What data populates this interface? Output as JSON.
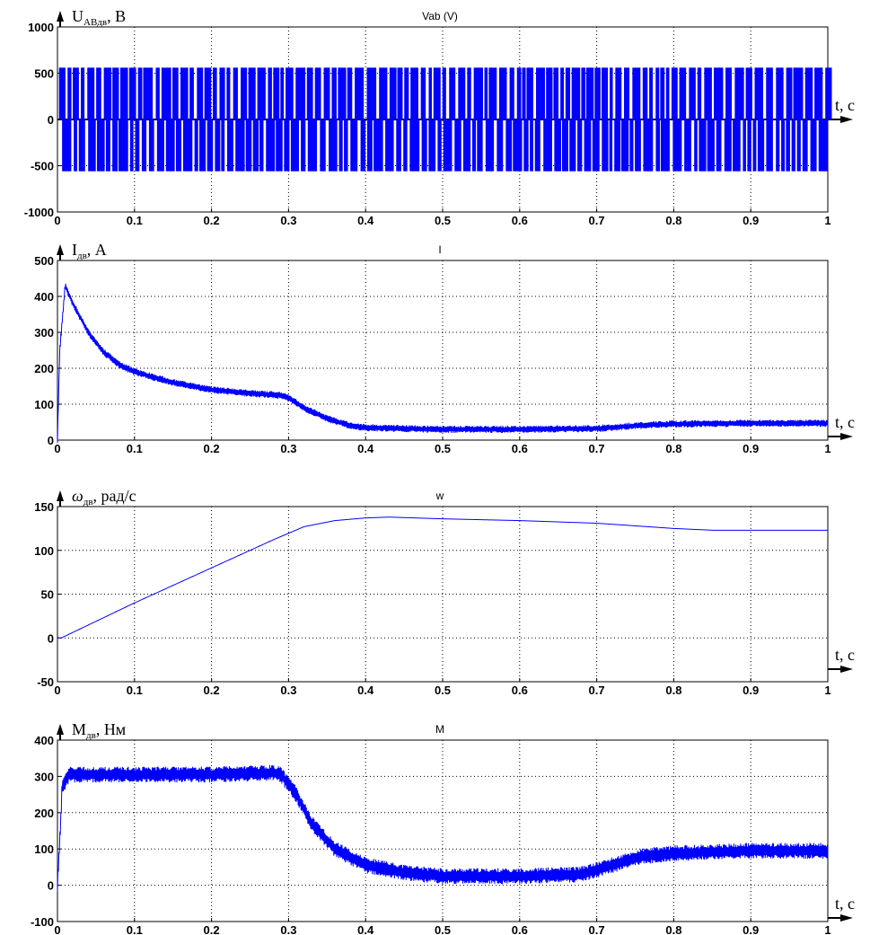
{
  "colors": {
    "signal": "#0000ff",
    "axes": "#000000",
    "grid": "#000000",
    "background": "#ffffff"
  },
  "chart_data": [
    {
      "type": "line",
      "title": "Vab (V)",
      "ylabel_main": "U",
      "ylabel_sub": "ABдв",
      "ylabel_unit": ", В",
      "xlabel": "t, c",
      "xlim": [
        0,
        1
      ],
      "ylim": [
        -1000,
        1000
      ],
      "xticks": [
        "0",
        "0.1",
        "0.2",
        "0.3",
        "0.4",
        "0.5",
        "0.6",
        "0.7",
        "0.8",
        "0.9",
        "1"
      ],
      "yticks": [
        "1000",
        "500",
        "0",
        "-500",
        "-1000"
      ],
      "grid": true,
      "signal": "PWM line voltage switching between +560 and -560 V",
      "levels": [
        560,
        -560
      ],
      "series": [
        {
          "x": [
            0,
            0.1,
            0.2,
            0.3,
            0.4,
            0.5,
            0.6,
            0.7,
            0.8,
            0.9,
            1.0
          ],
          "y_high": [
            560,
            560,
            560,
            560,
            560,
            560,
            560,
            560,
            560,
            560,
            560
          ],
          "y_low": [
            -560,
            -560,
            -560,
            -560,
            -560,
            -560,
            -560,
            -560,
            -560,
            -560,
            -560
          ]
        }
      ]
    },
    {
      "type": "line",
      "title": "I",
      "ylabel_main": "I",
      "ylabel_sub": "дв",
      "ylabel_unit": ", А",
      "xlabel": "t, c",
      "xlim": [
        0,
        1
      ],
      "ylim": [
        0,
        500
      ],
      "xticks": [
        "0",
        "0.1",
        "0.2",
        "0.3",
        "0.4",
        "0.5",
        "0.6",
        "0.7",
        "0.8",
        "0.9",
        "1"
      ],
      "yticks": [
        "500",
        "400",
        "300",
        "200",
        "100",
        "0"
      ],
      "grid": true,
      "ripple": 10,
      "series": [
        {
          "x": [
            0,
            0.003,
            0.01,
            0.02,
            0.04,
            0.06,
            0.08,
            0.1,
            0.15,
            0.2,
            0.25,
            0.29,
            0.3,
            0.32,
            0.35,
            0.38,
            0.4,
            0.45,
            0.5,
            0.6,
            0.7,
            0.75,
            0.8,
            0.9,
            1.0
          ],
          "y": [
            0,
            250,
            430,
            380,
            300,
            245,
            210,
            190,
            160,
            140,
            130,
            125,
            118,
            90,
            60,
            40,
            35,
            32,
            30,
            30,
            32,
            40,
            45,
            47,
            47
          ]
        }
      ]
    },
    {
      "type": "line",
      "title": "w",
      "ylabel_main": "ω",
      "ylabel_sub": "дв",
      "ylabel_unit": ", рад/с",
      "xlabel": "t, c",
      "xlim": [
        0,
        1
      ],
      "ylim": [
        -50,
        150
      ],
      "xticks": [
        "0",
        "0.1",
        "0.2",
        "0.3",
        "0.4",
        "0.5",
        "0.6",
        "0.7",
        "0.8",
        "0.9",
        "1"
      ],
      "yticks": [
        "150",
        "100",
        "50",
        "0",
        "-50"
      ],
      "grid": true,
      "ripple": 0,
      "series": [
        {
          "x": [
            0,
            0.005,
            0.1,
            0.2,
            0.28,
            0.32,
            0.36,
            0.4,
            0.43,
            0.5,
            0.6,
            0.7,
            0.75,
            0.8,
            0.85,
            1.0
          ],
          "y": [
            0,
            0,
            40,
            80,
            112,
            127,
            134,
            137,
            138,
            136,
            134,
            131,
            128,
            125,
            123,
            123
          ]
        }
      ]
    },
    {
      "type": "line",
      "title": "M",
      "ylabel_main": "M",
      "ylabel_sub": "дв",
      "ylabel_unit": ", Нм",
      "xlabel": "t, c",
      "xlim": [
        0,
        1
      ],
      "ylim": [
        -100,
        400
      ],
      "xticks": [
        "0",
        "0.1",
        "0.2",
        "0.3",
        "0.4",
        "0.5",
        "0.6",
        "0.7",
        "0.8",
        "0.9",
        "1"
      ],
      "yticks": [
        "400",
        "300",
        "200",
        "100",
        "0",
        "-100"
      ],
      "grid": true,
      "ripple": 22,
      "series": [
        {
          "x": [
            0,
            0.003,
            0.006,
            0.015,
            0.05,
            0.1,
            0.2,
            0.28,
            0.29,
            0.31,
            0.33,
            0.36,
            0.4,
            0.45,
            0.5,
            0.6,
            0.68,
            0.72,
            0.76,
            0.8,
            0.9,
            1.0
          ],
          "y": [
            0,
            120,
            270,
            305,
            305,
            305,
            305,
            310,
            305,
            250,
            170,
            100,
            55,
            35,
            25,
            25,
            30,
            55,
            80,
            88,
            95,
            95
          ]
        }
      ]
    }
  ]
}
